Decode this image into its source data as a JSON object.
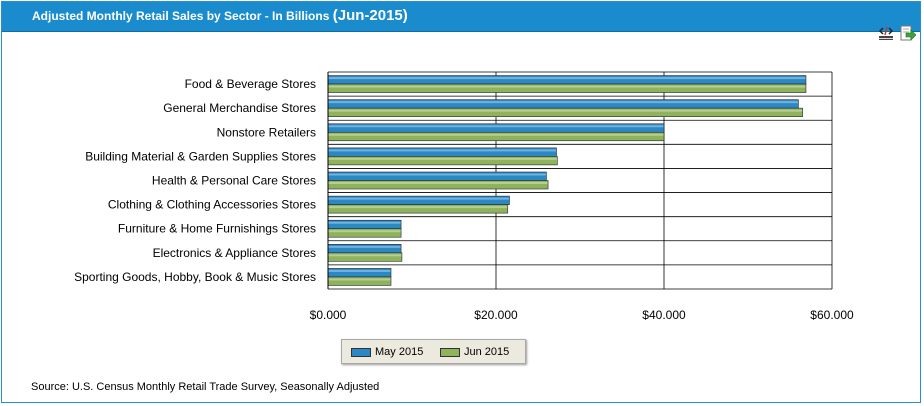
{
  "header": {
    "title": "Adjusted Monthly Retail Sales by Sector - In Billions",
    "period": "(Jun-2015)"
  },
  "toolbar": {
    "embed_icon": "embed-code-icon",
    "export_icon": "export-arrow-icon"
  },
  "colors": {
    "header_bg": "#1a8ccd",
    "may": "#2b88c4",
    "jun": "#8fb35a"
  },
  "chart_data": {
    "type": "bar",
    "orientation": "horizontal",
    "title": "Adjusted Monthly Retail Sales by Sector - In Billions (Jun-2015)",
    "xlabel": "",
    "ylabel": "",
    "xlim": [
      0,
      60
    ],
    "xticks": [
      0,
      20,
      40,
      60
    ],
    "xtick_labels": [
      "$0.000",
      "$20.000",
      "$40.000",
      "$60.000"
    ],
    "grid": true,
    "legend_position": "bottom-center",
    "categories": [
      "Food & Beverage Stores",
      "General Merchandise Stores",
      "Nonstore Retailers",
      "Building Material & Garden Supplies Stores",
      "Health & Personal Care Stores",
      "Clothing & Clothing Accessories Stores",
      "Furniture & Home Furnishings Stores",
      "Electronics & Appliance Stores",
      "Sporting Goods, Hobby, Book & Music Stores"
    ],
    "series": [
      {
        "name": "May 2015",
        "color": "#2b88c4",
        "values": [
          56.9,
          56.0,
          40.0,
          27.2,
          26.0,
          21.6,
          8.7,
          8.7,
          7.5
        ]
      },
      {
        "name": "Jun 2015",
        "color": "#8fb35a",
        "values": [
          56.9,
          56.5,
          40.0,
          27.3,
          26.2,
          21.4,
          8.7,
          8.8,
          7.5
        ]
      }
    ]
  },
  "source": "Source: U.S. Census Monthly Retail Trade Survey, Seasonally Adjusted"
}
